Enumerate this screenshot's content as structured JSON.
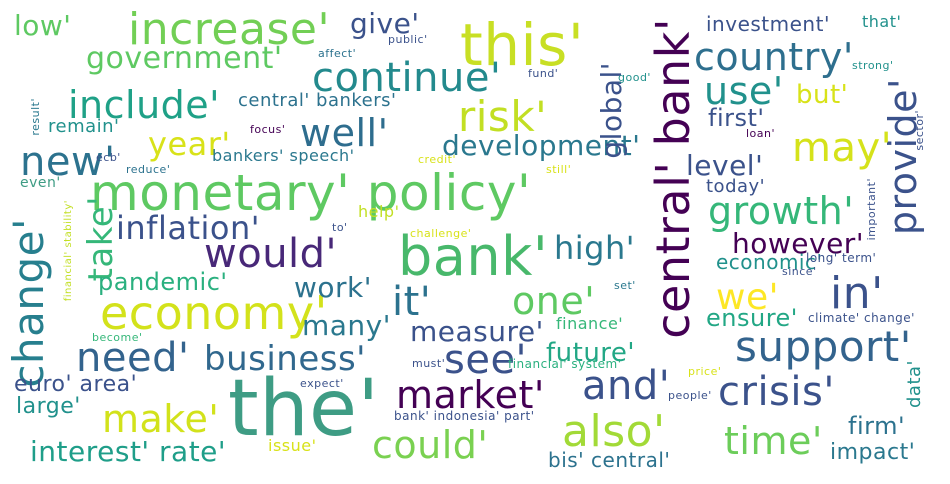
{
  "palette": {
    "purple": "#440154",
    "indigo": "#3b528b",
    "teal": "#21918c",
    "green": "#5ec962",
    "yellow": "#d5e21a"
  },
  "words": [
    {
      "text": "the'",
      "color": "#3e9c84"
    },
    {
      "text": "monetary' policy'",
      "color": "#5ec962"
    },
    {
      "text": "bank'",
      "color": "#48b86b"
    },
    {
      "text": "central' bank'",
      "color": "#440154"
    },
    {
      "text": "this'",
      "color": "#c8df24"
    },
    {
      "text": "economy'",
      "color": "#d3e21b"
    },
    {
      "text": "increase'",
      "color": "#72cf55"
    },
    {
      "text": "change'",
      "color": "#277f8e"
    },
    {
      "text": "continue'",
      "color": "#238a8d"
    },
    {
      "text": "provide'",
      "color": "#3b528b"
    },
    {
      "text": "risk'",
      "color": "#c2df23"
    },
    {
      "text": "also'",
      "color": "#a2da37"
    },
    {
      "text": "support'",
      "color": "#33638d"
    },
    {
      "text": "need'",
      "color": "#33638d"
    },
    {
      "text": "would'",
      "color": "#482878"
    },
    {
      "text": "business'",
      "color": "#31688e"
    },
    {
      "text": "crisis'",
      "color": "#3b528b"
    },
    {
      "text": "country'",
      "color": "#2e6f8e"
    },
    {
      "text": "include'",
      "color": "#1fa187"
    },
    {
      "text": "well'",
      "color": "#2e6d8e"
    },
    {
      "text": "new'",
      "color": "#2c728e"
    },
    {
      "text": "may'",
      "color": "#d5e21a"
    },
    {
      "text": "in'",
      "color": "#3b528b"
    },
    {
      "text": "growth'",
      "color": "#35b779"
    },
    {
      "text": "see'",
      "color": "#3b528b"
    },
    {
      "text": "could'",
      "color": "#7ad151"
    },
    {
      "text": "market'",
      "color": "#440154"
    },
    {
      "text": "and'",
      "color": "#3b528b"
    },
    {
      "text": "one'",
      "color": "#5ec962"
    },
    {
      "text": "it'",
      "color": "#2c728e"
    },
    {
      "text": "make'",
      "color": "#d2e21b"
    },
    {
      "text": "time'",
      "color": "#6ccd5a"
    },
    {
      "text": "use'",
      "color": "#21918c"
    },
    {
      "text": "we'",
      "color": "#fde725"
    },
    {
      "text": "government'",
      "color": "#5ec962"
    },
    {
      "text": "take'",
      "color": "#35b779"
    },
    {
      "text": "year'",
      "color": "#d8e219"
    },
    {
      "text": "development'",
      "color": "#2a788e"
    },
    {
      "text": "high'",
      "color": "#2a788e"
    },
    {
      "text": "inflation'",
      "color": "#3b528b"
    },
    {
      "text": "interest' rate'",
      "color": "#1f9e89"
    },
    {
      "text": "global'",
      "color": "#3b528b"
    },
    {
      "text": "measure'",
      "color": "#3b528b"
    },
    {
      "text": "give'",
      "color": "#3b528b"
    },
    {
      "text": "low'",
      "color": "#5ec962"
    },
    {
      "text": "future'",
      "color": "#22a785"
    },
    {
      "text": "many'",
      "color": "#2a788e"
    },
    {
      "text": "work'",
      "color": "#2c728e"
    },
    {
      "text": "however'",
      "color": "#440154"
    },
    {
      "text": "ensure'",
      "color": "#22a785"
    },
    {
      "text": "first'",
      "color": "#3b528b"
    },
    {
      "text": "level'",
      "color": "#3b528b"
    },
    {
      "text": "but'",
      "color": "#d8e219"
    },
    {
      "text": "pandemic'",
      "color": "#2ab07f"
    },
    {
      "text": "euro' area'",
      "color": "#3b528b"
    },
    {
      "text": "large'",
      "color": "#21918c"
    },
    {
      "text": "firm'",
      "color": "#2c728e"
    },
    {
      "text": "impact'",
      "color": "#2a788e"
    },
    {
      "text": "investment'",
      "color": "#3b528b"
    },
    {
      "text": "central' bankers'",
      "color": "#2c728e"
    },
    {
      "text": "bis' central'",
      "color": "#2c728e"
    },
    {
      "text": "economic'",
      "color": "#21918c"
    },
    {
      "text": "today'",
      "color": "#3b528b"
    },
    {
      "text": "bankers' speech'",
      "color": "#2a788e"
    },
    {
      "text": "remain'",
      "color": "#21918c"
    },
    {
      "text": "finance'",
      "color": "#35b779"
    },
    {
      "text": "that'",
      "color": "#21918c"
    },
    {
      "text": "data'",
      "color": "#21918c"
    },
    {
      "text": "even'",
      "color": "#3e9c84"
    },
    {
      "text": "help'",
      "color": "#c2df23"
    },
    {
      "text": "issue'",
      "color": "#d8e219"
    },
    {
      "text": "financial' system'",
      "color": "#2ab07f"
    },
    {
      "text": "bank' indonesia' part'",
      "color": "#3b528b"
    },
    {
      "text": "climate' change'",
      "color": "#3b528b"
    },
    {
      "text": "long' term'",
      "color": "#3b528b"
    },
    {
      "text": "to'",
      "color": "#3b528b"
    },
    {
      "text": "challenge'",
      "color": "#d8e219"
    },
    {
      "text": "must'",
      "color": "#3b528b"
    },
    {
      "text": "affect'",
      "color": "#2c728e"
    },
    {
      "text": "public'",
      "color": "#3b528b"
    },
    {
      "text": "fund'",
      "color": "#3b528b"
    },
    {
      "text": "good'",
      "color": "#21918c"
    },
    {
      "text": "strong'",
      "color": "#21918c"
    },
    {
      "text": "focus'",
      "color": "#440154"
    },
    {
      "text": "loan'",
      "color": "#440154"
    },
    {
      "text": "ecb'",
      "color": "#3b528b"
    },
    {
      "text": "reduce'",
      "color": "#2c728e"
    },
    {
      "text": "credit'",
      "color": "#d8e219"
    },
    {
      "text": "still'",
      "color": "#d8e219"
    },
    {
      "text": "result'",
      "color": "#2a788e"
    },
    {
      "text": "sector'",
      "color": "#3b528b"
    },
    {
      "text": "important'",
      "color": "#3b528b"
    },
    {
      "text": "financial' stability'",
      "color": "#c2df23"
    },
    {
      "text": "since'",
      "color": "#3b528b"
    },
    {
      "text": "set'",
      "color": "#2a788e"
    },
    {
      "text": "become'",
      "color": "#35b779"
    },
    {
      "text": "expect'",
      "color": "#3b528b"
    },
    {
      "text": "price'",
      "color": "#d8e219"
    },
    {
      "text": "people'",
      "color": "#3b528b"
    }
  ]
}
